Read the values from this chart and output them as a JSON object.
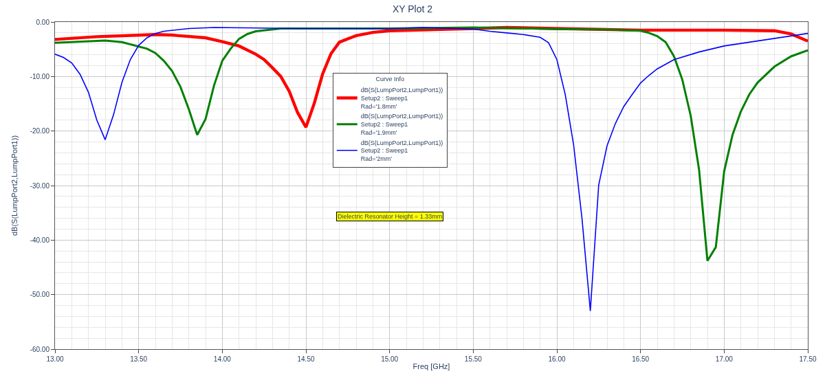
{
  "chart_data": {
    "type": "line",
    "title": "XY Plot 2",
    "xlabel": "Freq [GHz]",
    "ylabel": "dB(S(LumpPort2,LumpPort1))",
    "legend_title": "Curve Info",
    "legend": "center",
    "grid": true,
    "marker": "none",
    "line_style": "solid",
    "xlim": [
      13,
      17.5
    ],
    "ylim": [
      -60,
      0
    ],
    "xticks": [
      {
        "value": 13,
        "label": "13.00"
      },
      {
        "value": 13.5,
        "label": "13.50"
      },
      {
        "value": 14,
        "label": "14.00"
      },
      {
        "value": 14.5,
        "label": "14.50"
      },
      {
        "value": 15,
        "label": "15.00"
      },
      {
        "value": 15.5,
        "label": "15.50"
      },
      {
        "value": 16,
        "label": "16.00"
      },
      {
        "value": 16.5,
        "label": "16.50"
      },
      {
        "value": 17,
        "label": "17.00"
      },
      {
        "value": 17.5,
        "label": "17.50"
      }
    ],
    "yticks": [
      {
        "value": 0,
        "label": "0.00"
      },
      {
        "value": -10,
        "label": "-10.00"
      },
      {
        "value": -20,
        "label": "-20.00"
      },
      {
        "value": -30,
        "label": "-30.00"
      },
      {
        "value": -40,
        "label": "-40.00"
      },
      {
        "value": -50,
        "label": "-50.00"
      },
      {
        "value": -60,
        "label": "-60.00"
      }
    ],
    "annotations": [
      "Dielectric Resonator Height = 1.33mm"
    ],
    "series": [
      {
        "name": "dB(S(LumpPort2,LumpPort1))\nSetup2 : Sweep1\nRad='1.8mm'",
        "color": "#ff0000",
        "x": [
          13.0,
          13.25,
          13.6,
          13.7,
          13.9,
          14.0,
          14.1,
          14.2,
          14.25,
          14.3,
          14.35,
          14.4,
          14.45,
          14.5,
          14.55,
          14.6,
          14.65,
          14.7,
          14.8,
          14.9,
          15.0,
          15.5,
          15.7,
          16.0,
          16.5,
          17.0,
          17.3,
          17.4,
          17.5
        ],
        "values": [
          -3.2,
          -2.7,
          -2.3,
          -2.4,
          -2.9,
          -3.6,
          -4.4,
          -5.9,
          -6.9,
          -8.4,
          -10.0,
          -12.7,
          -16.6,
          -19.3,
          -14.9,
          -9.5,
          -5.8,
          -3.7,
          -2.5,
          -1.9,
          -1.6,
          -1.2,
          -1.0,
          -1.2,
          -1.5,
          -1.5,
          -1.6,
          -2.2,
          -3.5
        ]
      },
      {
        "name": "dB(S(LumpPort2,LumpPort1))\nSetup2 : Sweep1\nRad='1.9mm'",
        "color": "#008000",
        "x": [
          13.0,
          13.3,
          13.4,
          13.55,
          13.6,
          13.65,
          13.7,
          13.75,
          13.8,
          13.85,
          13.9,
          13.95,
          14.0,
          14.05,
          14.1,
          14.15,
          14.2,
          14.35,
          15.0,
          15.5,
          16.0,
          16.3,
          16.5,
          16.55,
          16.6,
          16.65,
          16.7,
          16.75,
          16.8,
          16.85,
          16.9,
          16.95,
          17.0,
          17.05,
          17.1,
          17.15,
          17.2,
          17.3,
          17.4,
          17.5
        ],
        "values": [
          -3.8,
          -3.4,
          -3.7,
          -4.9,
          -5.7,
          -7.1,
          -9.0,
          -11.9,
          -16.0,
          -20.7,
          -17.8,
          -11.7,
          -7.1,
          -4.9,
          -3.1,
          -2.2,
          -1.7,
          -1.2,
          -1.2,
          -1.0,
          -1.3,
          -1.4,
          -1.6,
          -2.0,
          -2.6,
          -3.7,
          -6.3,
          -10.6,
          -17.2,
          -27.1,
          -43.8,
          -41.3,
          -27.4,
          -20.7,
          -16.4,
          -13.3,
          -11.1,
          -8.2,
          -6.3,
          -5.2
        ]
      },
      {
        "name": "dB(S(LumpPort2,LumpPort1))\nSetup2 : Sweep1\nRad='2mm'",
        "color": "#0000ff",
        "x": [
          13.0,
          13.05,
          13.1,
          13.15,
          13.2,
          13.25,
          13.3,
          13.35,
          13.4,
          13.45,
          13.5,
          13.55,
          13.6,
          13.65,
          13.8,
          13.95,
          14.5,
          15.0,
          15.2,
          15.5,
          15.6,
          15.7,
          15.8,
          15.9,
          15.95,
          16.0,
          16.05,
          16.1,
          16.15,
          16.2,
          16.25,
          16.3,
          16.35,
          16.4,
          16.45,
          16.5,
          16.55,
          16.6,
          16.7,
          16.85,
          17.0,
          17.5
        ],
        "values": [
          -5.9,
          -6.5,
          -7.5,
          -9.6,
          -12.9,
          -18.0,
          -21.6,
          -17.0,
          -11.1,
          -6.9,
          -4.3,
          -2.9,
          -2.1,
          -1.7,
          -1.2,
          -1.0,
          -1.2,
          -1.2,
          -1.0,
          -1.3,
          -1.7,
          -2.0,
          -2.3,
          -2.8,
          -3.8,
          -6.9,
          -13.3,
          -22.5,
          -36.0,
          -53.0,
          -29.9,
          -22.7,
          -18.6,
          -15.5,
          -13.3,
          -11.2,
          -9.8,
          -8.6,
          -6.9,
          -5.5,
          -4.4,
          -2.1
        ]
      }
    ]
  }
}
